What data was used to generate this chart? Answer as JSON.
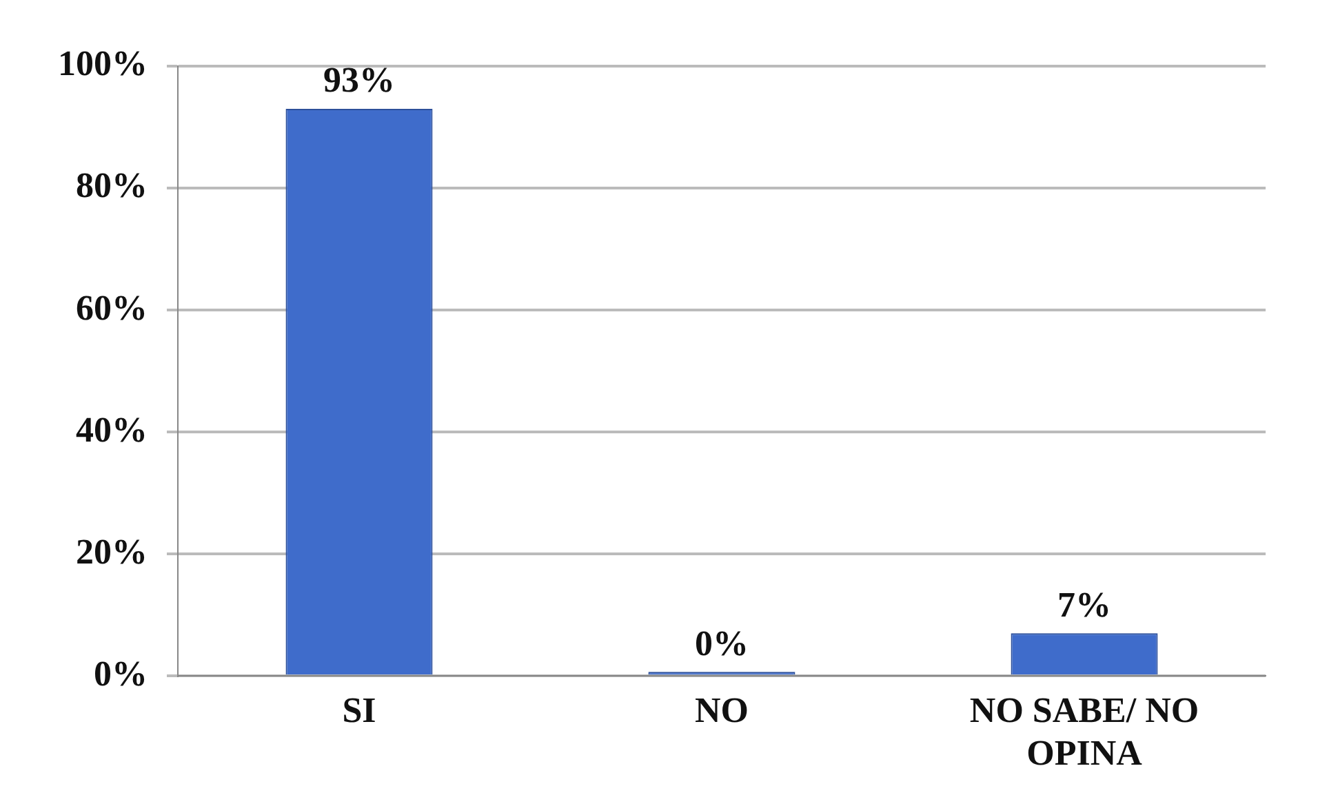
{
  "chart_data": {
    "type": "bar",
    "categories": [
      "SI",
      "NO",
      "NO SABE/ NO OPINA"
    ],
    "values": [
      93,
      0,
      7
    ],
    "color": "#3f6ccb",
    "value_labels": [
      "93%",
      "0%",
      "7%"
    ],
    "ylim": [
      0,
      100
    ],
    "yticks": [
      {
        "value": 0,
        "label": "0%"
      },
      {
        "value": 20,
        "label": "20%"
      },
      {
        "value": 40,
        "label": "40%"
      },
      {
        "value": 60,
        "label": "60%"
      },
      {
        "value": 80,
        "label": "80%"
      },
      {
        "value": 100,
        "label": "100%"
      }
    ],
    "grid": "y",
    "legend": false
  }
}
